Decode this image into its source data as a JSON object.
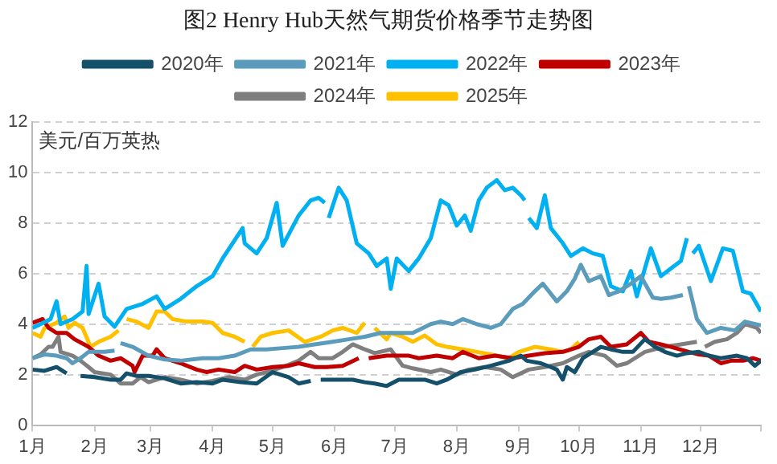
{
  "chart_data": {
    "type": "line",
    "title": "图2 Henry Hub天然气期货价格季节走势图",
    "ylabel": "美元/百万英热",
    "xlim": [
      "--01-01",
      "--12-31"
    ],
    "xticks": [
      {
        "value": "--01-01",
        "label": "1月"
      },
      {
        "value": "--02-01",
        "label": "2月"
      },
      {
        "value": "--03-01",
        "label": "3月"
      },
      {
        "value": "--04-01",
        "label": "4月"
      },
      {
        "value": "--05-01",
        "label": "5月"
      },
      {
        "value": "--06-01",
        "label": "6月"
      },
      {
        "value": "--07-01",
        "label": "7月"
      },
      {
        "value": "--08-01",
        "label": "8月"
      },
      {
        "value": "--09-01",
        "label": "9月"
      },
      {
        "value": "--10-01",
        "label": "10月"
      },
      {
        "value": "--11-01",
        "label": "11月"
      },
      {
        "value": "--12-01",
        "label": "12月"
      },
      {
        "value": "--12-31",
        "label": null
      }
    ],
    "ylim": [
      0,
      12
    ],
    "yticks": [
      0,
      2,
      4,
      6,
      8,
      10,
      12
    ],
    "grid": "y",
    "legend": "top",
    "marker": "none",
    "line_style": "solid",
    "series": [
      {
        "name": "2020年",
        "color": "#15506a",
        "x": [
          "--01-01",
          "--01-07",
          "--01-13",
          "--01-18",
          "--01-19",
          "--01-25",
          "--02-01",
          "--02-09",
          "--02-14",
          "--02-17",
          "--02-22",
          "--02-28",
          "--03-08",
          "--03-16",
          "--03-24",
          "--04-01",
          "--04-06",
          "--04-15",
          "--04-23",
          "--05-01",
          "--05-09",
          "--05-14",
          "--05-20",
          "--05-22",
          "--05-25",
          "--06-02",
          "--06-10",
          "--06-16",
          "--06-21",
          "--06-27",
          "--07-03",
          "--07-08",
          "--07-16",
          "--07-22",
          "--07-27",
          "--08-03",
          "--08-10",
          "--08-18",
          "--08-27",
          "--09-02",
          "--09-05",
          "--09-12",
          "--09-17",
          "--09-20",
          "--09-23",
          "--09-25",
          "--09-29",
          "--10-03",
          "--10-12",
          "--10-17",
          "--10-23",
          "--10-28",
          "--11-03",
          "--11-08",
          "--11-13",
          "--11-19",
          "--11-24",
          "--11-30",
          "--12-05",
          "--12-11",
          "--12-19",
          "--12-24",
          "--12-28",
          "--12-31"
        ],
        "values": [
          2.2,
          2.15,
          2.3,
          2.05,
          null,
          1.95,
          1.9,
          1.8,
          1.8,
          2.05,
          1.95,
          1.95,
          1.85,
          1.65,
          1.7,
          1.65,
          1.8,
          1.7,
          1.65,
          2.1,
          1.9,
          1.65,
          1.75,
          null,
          1.8,
          1.8,
          1.8,
          1.7,
          1.65,
          1.55,
          1.8,
          1.8,
          1.8,
          1.65,
          1.8,
          2.1,
          2.2,
          2.35,
          2.55,
          2.75,
          2.55,
          2.45,
          2.3,
          2.2,
          1.8,
          2.3,
          2.1,
          2.65,
          3.1,
          3.0,
          2.9,
          2.9,
          3.4,
          3.1,
          2.9,
          2.75,
          2.85,
          2.9,
          2.75,
          2.65,
          2.75,
          2.65,
          2.35,
          2.55
        ]
      },
      {
        "name": "2021年",
        "color": "#5b9bbb",
        "x": [
          "--01-01",
          "--01-07",
          "--01-13",
          "--01-18",
          "--01-21",
          "--01-25",
          "--01-29",
          "--02-06",
          "--02-11",
          "--02-13",
          "--02-14",
          "--02-20",
          "--02-28",
          "--03-08",
          "--03-16",
          "--03-27",
          "--04-04",
          "--04-12",
          "--04-20",
          "--04-28",
          "--05-06",
          "--05-14",
          "--05-22",
          "--05-31",
          "--06-08",
          "--06-16",
          "--06-24",
          "--06-29",
          "--07-10",
          "--07-19",
          "--07-24",
          "--07-30",
          "--08-04",
          "--08-11",
          "--08-18",
          "--08-23",
          "--08-29",
          "--09-03",
          "--09-09",
          "--09-13",
          "--09-20",
          "--09-25",
          "--09-29",
          "--10-02",
          "--10-06",
          "--10-12",
          "--10-16",
          "--10-21",
          "--10-27",
          "--11-01",
          "--11-07",
          "--11-11",
          "--11-16",
          "--11-22",
          "--11-23",
          "--11-25",
          "--11-29",
          "--12-04",
          "--12-11",
          "--12-18",
          "--12-23",
          "--12-31"
        ],
        "values": [
          2.65,
          2.8,
          2.75,
          2.65,
          2.45,
          2.65,
          2.9,
          2.9,
          2.95,
          null,
          3.25,
          3.1,
          2.75,
          2.6,
          2.55,
          2.65,
          2.65,
          2.75,
          3.0,
          3.0,
          3.05,
          3.1,
          3.2,
          3.3,
          3.4,
          3.5,
          3.65,
          3.65,
          3.65,
          4.0,
          4.1,
          4.0,
          4.2,
          4.0,
          3.85,
          4.0,
          4.6,
          4.8,
          5.3,
          5.6,
          4.9,
          5.3,
          5.8,
          6.35,
          5.7,
          5.9,
          5.15,
          5.3,
          5.6,
          5.9,
          5.05,
          5.0,
          5.05,
          5.15,
          null,
          5.5,
          4.2,
          3.65,
          3.85,
          3.75,
          4.1,
          3.95
        ]
      },
      {
        "name": "2022年",
        "color": "#00b0f0",
        "x": [
          "--01-01",
          "--01-05",
          "--01-10",
          "--01-13",
          "--01-15",
          "--01-21",
          "--01-26",
          "--01-28",
          "--01-29",
          "--02-03",
          "--02-06",
          "--02-11",
          "--02-17",
          "--02-25",
          "--03-04",
          "--03-08",
          "--03-16",
          "--03-24",
          "--04-01",
          "--04-06",
          "--04-16",
          "--04-17",
          "--04-23",
          "--04-28",
          "--05-03",
          "--05-06",
          "--05-14",
          "--05-20",
          "--05-24",
          "--05-27",
          "--05-28",
          "--05-29",
          "--06-03",
          "--06-07",
          "--06-12",
          "--06-18",
          "--06-22",
          "--06-27",
          "--06-29",
          "--07-02",
          "--07-08",
          "--07-13",
          "--07-19",
          "--07-24",
          "--07-28",
          "--08-01",
          "--08-05",
          "--08-08",
          "--08-12",
          "--08-16",
          "--08-21",
          "--08-25",
          "--08-29",
          "--09-02",
          "--09-04",
          "--09-05",
          "--09-06",
          "--09-10",
          "--09-14",
          "--09-17",
          "--09-23",
          "--09-27",
          "--10-03",
          "--10-08",
          "--10-13",
          "--10-17",
          "--10-23",
          "--10-27",
          "--10-30",
          "--11-03",
          "--11-06",
          "--11-11",
          "--11-16",
          "--11-21",
          "--11-24",
          "--11-25",
          "--11-27",
          "--11-30",
          "--12-06",
          "--12-12",
          "--12-17",
          "--12-22",
          "--12-26",
          "--12-31"
        ],
        "values": [
          3.85,
          4.0,
          4.2,
          4.9,
          4.0,
          4.2,
          4.5,
          6.3,
          4.4,
          5.6,
          4.3,
          3.9,
          4.6,
          4.8,
          5.1,
          4.6,
          5.0,
          5.5,
          5.9,
          6.6,
          7.8,
          7.2,
          6.8,
          7.4,
          8.8,
          7.1,
          8.3,
          8.9,
          9.0,
          8.8,
          null,
          8.2,
          9.4,
          8.9,
          7.2,
          6.8,
          6.3,
          6.6,
          5.4,
          6.6,
          6.1,
          6.6,
          7.4,
          8.9,
          8.7,
          7.9,
          8.3,
          7.7,
          8.9,
          9.4,
          9.7,
          9.3,
          9.4,
          9.1,
          8.9,
          null,
          8.2,
          7.8,
          9.1,
          7.8,
          7.2,
          6.7,
          7.0,
          6.8,
          6.7,
          5.5,
          5.3,
          6.1,
          5.1,
          6.2,
          7.0,
          5.9,
          6.2,
          6.5,
          7.4,
          null,
          6.8,
          7.1,
          5.7,
          7.0,
          6.9,
          5.3,
          5.2,
          4.5
        ]
      },
      {
        "name": "2023年",
        "color": "#c00000",
        "x": [
          "--01-01",
          "--01-06",
          "--01-09",
          "--01-13",
          "--01-18",
          "--01-22",
          "--01-29",
          "--02-03",
          "--02-09",
          "--02-14",
          "--02-20",
          "--02-21",
          "--02-25",
          "--03-02",
          "--03-04",
          "--03-08",
          "--03-16",
          "--03-24",
          "--03-29",
          "--04-04",
          "--04-12",
          "--04-17",
          "--04-23",
          "--05-01",
          "--05-09",
          "--05-14",
          "--05-22",
          "--05-28",
          "--06-05",
          "--06-13",
          "--06-16",
          "--06-18",
          "--06-27",
          "--07-08",
          "--07-13",
          "--07-22",
          "--07-30",
          "--08-04",
          "--08-12",
          "--08-20",
          "--08-29",
          "--09-06",
          "--09-14",
          "--09-23",
          "--10-01",
          "--10-06",
          "--10-12",
          "--10-17",
          "--10-25",
          "--11-01",
          "--11-05",
          "--11-11",
          "--11-16",
          "--11-25",
          "--11-30",
          "--12-05",
          "--12-11",
          "--12-16",
          "--12-22",
          "--12-27",
          "--12-31"
        ],
        "values": [
          4.05,
          4.2,
          3.85,
          3.65,
          3.65,
          3.4,
          3.1,
          2.75,
          2.55,
          2.65,
          2.35,
          2.1,
          2.75,
          2.75,
          3.0,
          2.65,
          2.45,
          2.2,
          2.1,
          2.2,
          2.1,
          2.35,
          2.2,
          2.3,
          2.35,
          2.45,
          2.3,
          2.3,
          2.35,
          2.65,
          null,
          2.65,
          2.75,
          2.75,
          2.65,
          2.75,
          2.65,
          2.9,
          2.65,
          2.75,
          2.65,
          2.75,
          2.85,
          2.9,
          3.1,
          3.4,
          3.5,
          3.1,
          3.2,
          3.65,
          3.3,
          3.2,
          3.1,
          2.9,
          2.8,
          2.75,
          2.45,
          2.55,
          2.55,
          2.65,
          2.55
        ]
      },
      {
        "name": "2024年",
        "color": "#7f7f7f",
        "x": [
          "--01-01",
          "--01-05",
          "--01-09",
          "--01-11",
          "--01-14",
          "--01-15",
          "--01-21",
          "--01-25",
          "--01-29",
          "--02-01",
          "--02-09",
          "--02-14",
          "--02-20",
          "--02-24",
          "--02-28",
          "--03-08",
          "--03-16",
          "--03-24",
          "--04-01",
          "--04-09",
          "--04-17",
          "--04-23",
          "--04-28",
          "--05-06",
          "--05-14",
          "--05-20",
          "--05-24",
          "--05-31",
          "--06-05",
          "--06-10",
          "--06-16",
          "--06-21",
          "--06-29",
          "--07-05",
          "--07-10",
          "--07-19",
          "--07-24",
          "--08-01",
          "--08-07",
          "--08-15",
          "--08-23",
          "--08-29",
          "--09-06",
          "--09-14",
          "--09-23",
          "--10-01",
          "--10-06",
          "--10-14",
          "--10-20",
          "--10-25",
          "--11-03",
          "--11-08",
          "--11-13",
          "--11-21",
          "--11-29",
          "--12-01",
          "--12-03",
          "--12-08",
          "--12-14",
          "--12-19",
          "--12-23",
          "--12-29",
          "--12-31"
        ],
        "values": [
          2.65,
          2.8,
          3.1,
          3.1,
          3.5,
          2.9,
          2.75,
          2.55,
          2.3,
          2.1,
          2.0,
          1.65,
          1.65,
          1.9,
          1.7,
          1.9,
          1.8,
          1.65,
          1.75,
          1.9,
          1.8,
          2.0,
          2.1,
          2.3,
          2.55,
          2.9,
          2.65,
          2.65,
          2.9,
          3.2,
          3.0,
          2.85,
          3.0,
          2.35,
          2.25,
          2.1,
          2.2,
          2.0,
          2.2,
          2.3,
          2.2,
          1.9,
          2.2,
          2.3,
          2.45,
          2.75,
          2.9,
          2.75,
          2.35,
          2.45,
          2.9,
          3.0,
          3.1,
          3.2,
          3.3,
          null,
          3.1,
          3.3,
          3.4,
          3.65,
          4.0,
          3.85,
          3.65
        ]
      },
      {
        "name": "2025年",
        "color": "#ffc000",
        "x": [
          "--01-01",
          "--01-05",
          "--01-07",
          "--01-13",
          "--01-17",
          "--01-19",
          "--01-22",
          "--01-26",
          "--01-30",
          "--02-03",
          "--02-09",
          "--02-13",
          "--02-15",
          "--02-17",
          "--02-22",
          "--02-28",
          "--03-04",
          "--03-08",
          "--03-12",
          "--03-19",
          "--03-27",
          "--04-01",
          "--04-06",
          "--04-12",
          "--04-17",
          "--04-19",
          "--04-21",
          "--04-25",
          "--05-01",
          "--05-09",
          "--05-17",
          "--05-25",
          "--05-31",
          "--06-05",
          "--06-12",
          "--06-16",
          "--06-18",
          "--06-21",
          "--06-27",
          "--06-29",
          "--07-05",
          "--07-10",
          "--07-16",
          "--07-22",
          "--07-27",
          "--08-04",
          "--08-11",
          "--08-18",
          "--08-27",
          "--09-01",
          "--09-09",
          "--09-17",
          "--09-23",
          "--09-27",
          "--10-01"
        ],
        "values": [
          3.65,
          3.5,
          3.85,
          4.05,
          4.3,
          3.85,
          4.05,
          3.85,
          3.1,
          3.3,
          3.5,
          3.75,
          null,
          4.2,
          4.1,
          3.85,
          4.5,
          4.5,
          4.2,
          4.1,
          4.1,
          4.05,
          3.65,
          3.5,
          3.3,
          null,
          3.1,
          3.5,
          3.65,
          3.75,
          3.3,
          3.5,
          3.75,
          3.85,
          3.65,
          4.05,
          null,
          3.85,
          3.4,
          3.65,
          3.5,
          3.3,
          3.55,
          3.2,
          3.1,
          3.0,
          2.9,
          2.8,
          2.65,
          2.9,
          3.1,
          3.0,
          2.9,
          3.0,
          3.3
        ]
      }
    ]
  }
}
